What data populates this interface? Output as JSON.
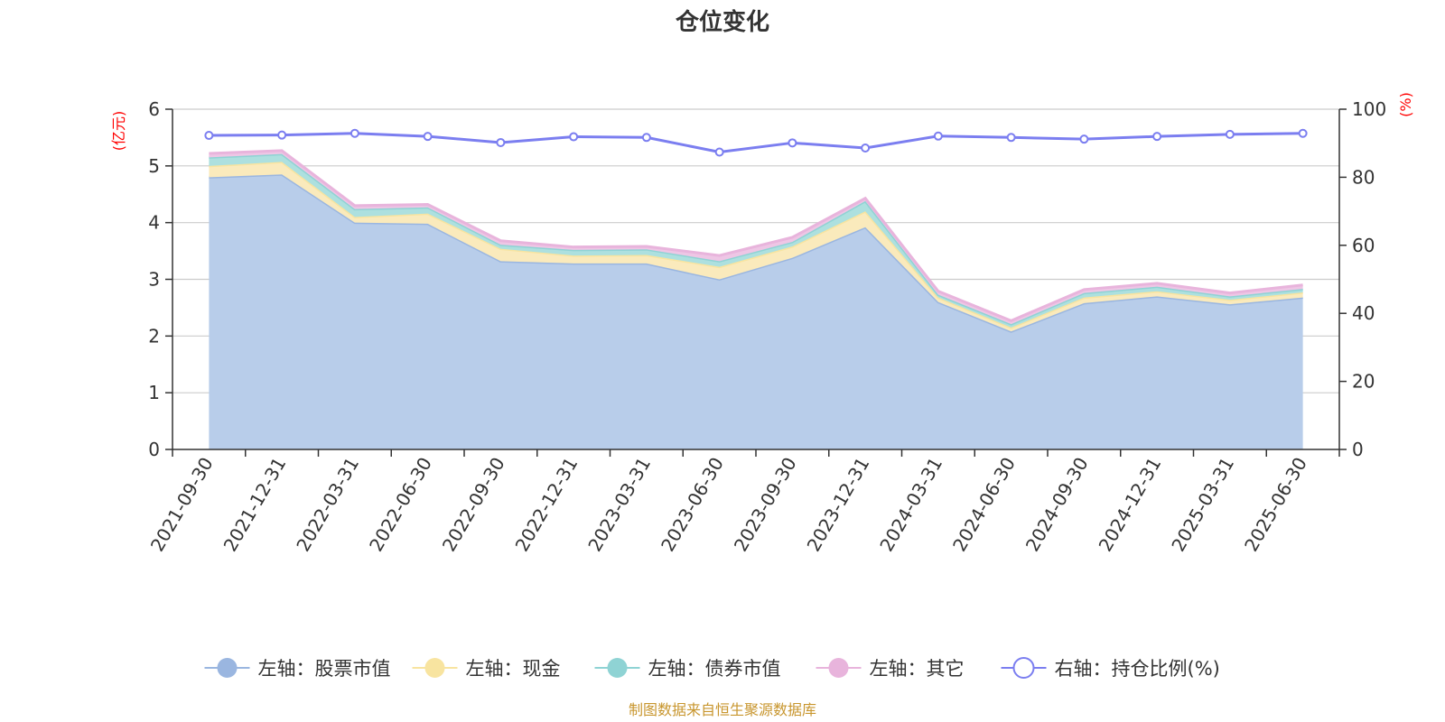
{
  "chart_data": {
    "type": "area",
    "title": "仓位变化",
    "left_axis_name": "(亿元)",
    "right_axis_name": "(%)",
    "left_ylim": [
      0,
      6
    ],
    "left_ticks": [
      0,
      1,
      2,
      3,
      4,
      5,
      6
    ],
    "right_ylim": [
      0,
      100
    ],
    "right_ticks": [
      0,
      20,
      40,
      60,
      80,
      100
    ],
    "grid": true,
    "legend_position": "bottom",
    "categories": [
      "2021-09-30",
      "2021-12-31",
      "2022-03-31",
      "2022-06-30",
      "2022-09-30",
      "2022-12-31",
      "2023-03-31",
      "2023-06-30",
      "2023-09-30",
      "2023-12-31",
      "2024-03-31",
      "2024-06-30",
      "2024-09-30",
      "2024-12-31",
      "2025-03-31",
      "2025-06-30"
    ],
    "series": [
      {
        "name": "左轴：股票市值",
        "axis": "left",
        "kind": "stacked-area",
        "color": "#9ab6e0",
        "fill": "#b8cdea",
        "values": [
          4.8,
          4.85,
          4.0,
          3.98,
          3.32,
          3.28,
          3.28,
          3.0,
          3.38,
          3.92,
          2.6,
          2.08,
          2.58,
          2.7,
          2.56,
          2.68
        ]
      },
      {
        "name": "左轴：现金",
        "axis": "left",
        "kind": "stacked-area",
        "color": "#f8e4a0",
        "fill": "#faeabc",
        "values": [
          0.2,
          0.22,
          0.1,
          0.18,
          0.22,
          0.14,
          0.15,
          0.22,
          0.2,
          0.28,
          0.08,
          0.07,
          0.1,
          0.09,
          0.08,
          0.09
        ]
      },
      {
        "name": "左轴：债券市值",
        "axis": "left",
        "kind": "stacked-area",
        "color": "#8fd3d4",
        "fill": "#ade0df",
        "values": [
          0.15,
          0.14,
          0.14,
          0.11,
          0.07,
          0.1,
          0.1,
          0.1,
          0.08,
          0.18,
          0.05,
          0.06,
          0.08,
          0.08,
          0.06,
          0.06
        ]
      },
      {
        "name": "左轴：其它",
        "axis": "left",
        "kind": "stacked-area",
        "color": "#e8b4dc",
        "fill": "#eec6e5",
        "values": [
          0.07,
          0.06,
          0.06,
          0.05,
          0.07,
          0.05,
          0.05,
          0.1,
          0.08,
          0.05,
          0.06,
          0.06,
          0.06,
          0.06,
          0.06,
          0.07
        ]
      },
      {
        "name": "右轴：持仓比例(%)",
        "axis": "right",
        "kind": "line",
        "color": "#7b7ef0",
        "values": [
          92.3,
          92.4,
          92.9,
          92.0,
          90.2,
          91.9,
          91.7,
          87.4,
          90.1,
          88.6,
          92.1,
          91.7,
          91.2,
          92.0,
          92.6,
          92.9
        ]
      }
    ],
    "source_note": "制图数据来自恒生聚源数据库"
  }
}
